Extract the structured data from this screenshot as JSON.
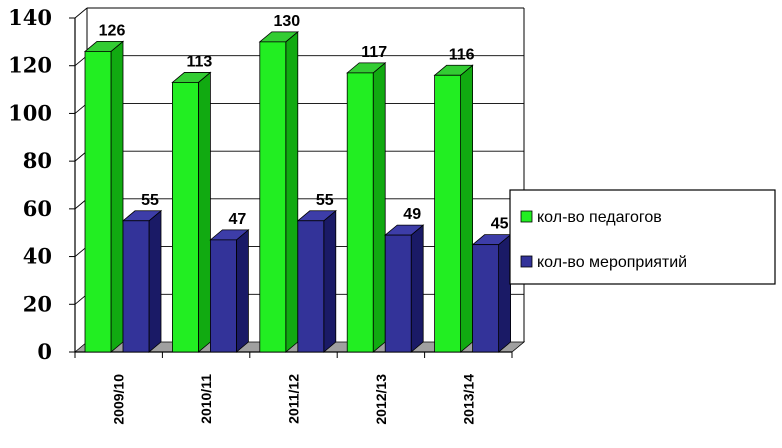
{
  "chart_data": {
    "type": "bar",
    "categories": [
      "2009/10",
      "2010/11",
      "2011/12",
      "2012/13",
      "2013/14"
    ],
    "series": [
      {
        "name": "кол-во педагогов",
        "values": [
          126,
          113,
          130,
          117,
          116
        ],
        "color": "#22ee22",
        "side": "#11aa11",
        "top": "#33cc33"
      },
      {
        "name": "кол-во мероприятий",
        "values": [
          55,
          47,
          55,
          49,
          45
        ],
        "color": "#333399",
        "side": "#1a1a66",
        "top": "#3d3da8"
      }
    ],
    "yticks": [
      "0",
      "20",
      "40",
      "60",
      "80",
      "100",
      "120",
      "140"
    ],
    "ylim": [
      0,
      140
    ],
    "grid": true,
    "legend": "right",
    "view_3d": true
  }
}
